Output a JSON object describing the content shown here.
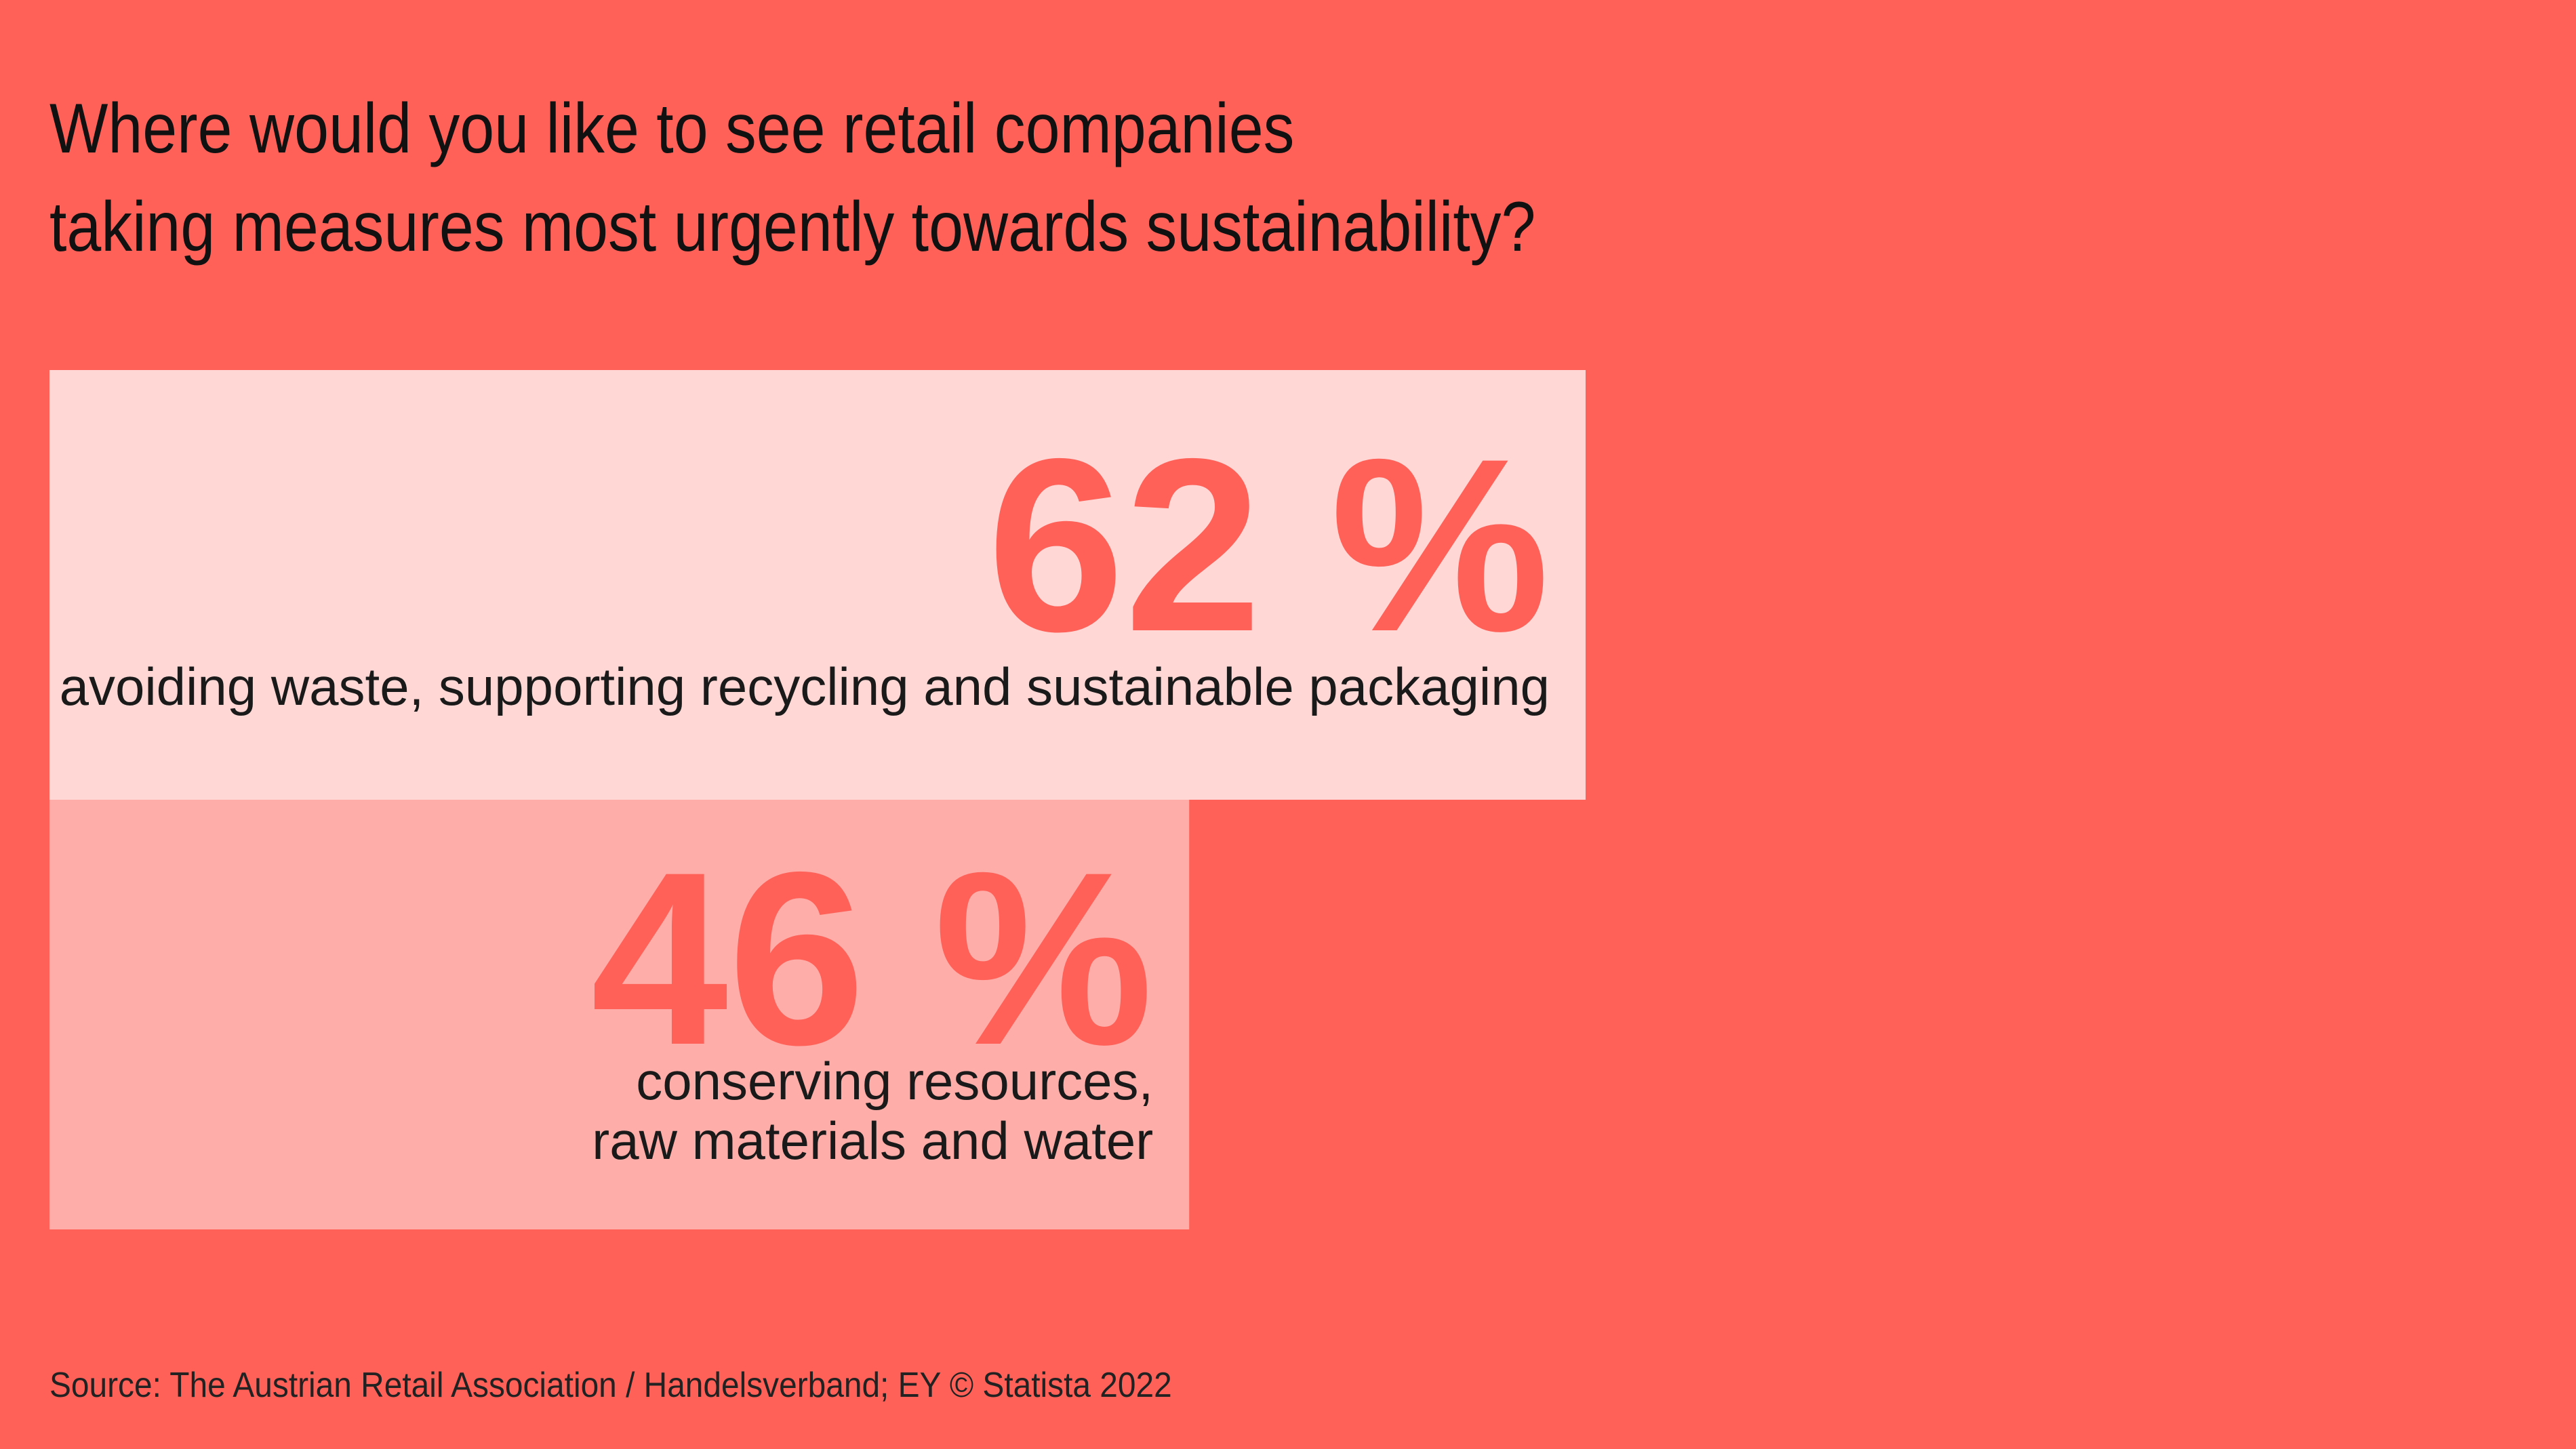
{
  "title": {
    "line1": "Where would you like to see retail companies",
    "line2": "taking measures most urgently towards sustainability?"
  },
  "source": "Source: The Austrian Retail Association / Handelsverband; EY © Statista 2022",
  "colors": {
    "background": "#FF6159",
    "bar_1": "#FFD7D5",
    "bar_2": "#FFADA8",
    "value_text": "#FF6159",
    "label_text": "#1A1A1A"
  },
  "chart_data": {
    "type": "bar",
    "orientation": "horizontal",
    "unit": "%",
    "categories": [
      [
        "avoiding waste, supporting recycling and sustainable packaging"
      ],
      [
        "conserving resources,",
        "raw materials and water"
      ]
    ],
    "values": [
      62,
      46
    ],
    "value_labels": [
      "62 %",
      "46 %"
    ]
  }
}
